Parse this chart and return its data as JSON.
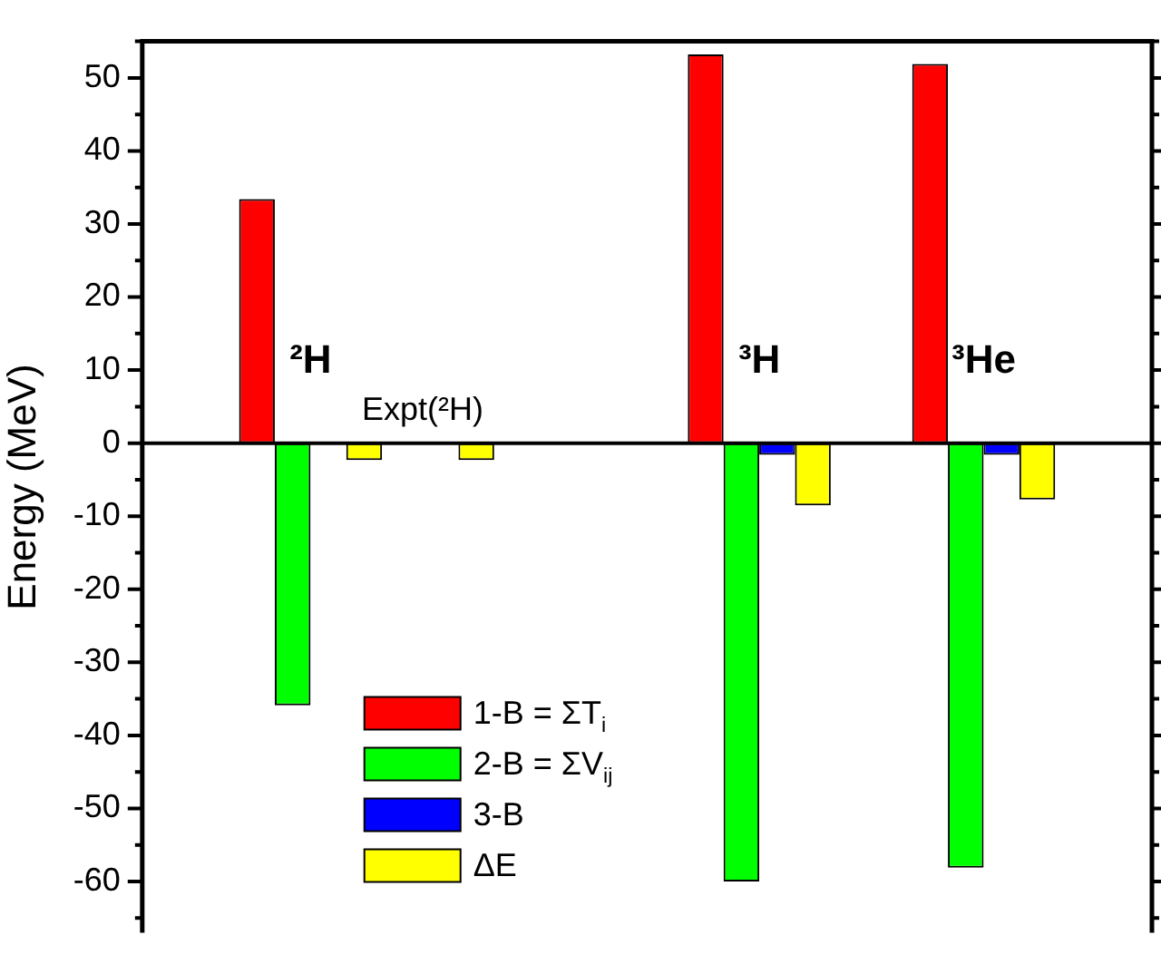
{
  "chart_data": {
    "type": "bar",
    "ylabel": "Energy (MeV)",
    "categories": [
      null,
      null,
      null,
      null,
      null,
      null,
      null,
      null,
      null
    ],
    "series": [
      {
        "name": "1-B = ΣT$_{i}$",
        "color": "#ff0000",
        "values": [
          null,
          33.4,
          null,
          null,
          null,
          53.2,
          null,
          51.9,
          null
        ]
      },
      {
        "name": "2-B = ΣV$_{ij}$",
        "color": "#00ff00",
        "values": [
          null,
          -35.9,
          null,
          null,
          null,
          -60.0,
          null,
          -58.1,
          null
        ]
      },
      {
        "name": "3-B",
        "color": "#0000ff",
        "values": [
          null,
          null,
          null,
          null,
          null,
          -1.6,
          null,
          -1.6,
          null
        ]
      },
      {
        "name": "ΔE",
        "color": "#ffff00",
        "values": [
          null,
          -2.3,
          -2.3,
          null,
          null,
          -8.5,
          null,
          -7.7,
          null
        ]
      }
    ],
    "annotations": [
      "²H",
      "Expt(²H)",
      "³H",
      "³He"
    ],
    "ref_lines": [
      {
        "axis": "y",
        "value": 0,
        "color": "#000000"
      }
    ],
    "ylim": [
      -67,
      55
    ],
    "yticks": [
      {
        "value": -65,
        "label": null
      },
      -60,
      {
        "value": -55,
        "label": null
      },
      -50,
      {
        "value": -45,
        "label": null
      },
      -40,
      {
        "value": -35,
        "label": null
      },
      -30,
      {
        "value": -25,
        "label": null
      },
      -20,
      {
        "value": -15,
        "label": null
      },
      -10,
      {
        "value": -5,
        "label": null
      },
      0,
      {
        "value": 5,
        "label": null
      },
      10,
      {
        "value": 15,
        "label": null
      },
      20,
      {
        "value": 25,
        "label": null
      },
      30,
      {
        "value": 35,
        "label": null
      },
      40,
      {
        "value": 45,
        "label": null
      },
      50,
      {
        "value": 55,
        "label": null
      }
    ],
    "grid": false,
    "legend": "bottom left",
    "tick_labels": "y"
  }
}
